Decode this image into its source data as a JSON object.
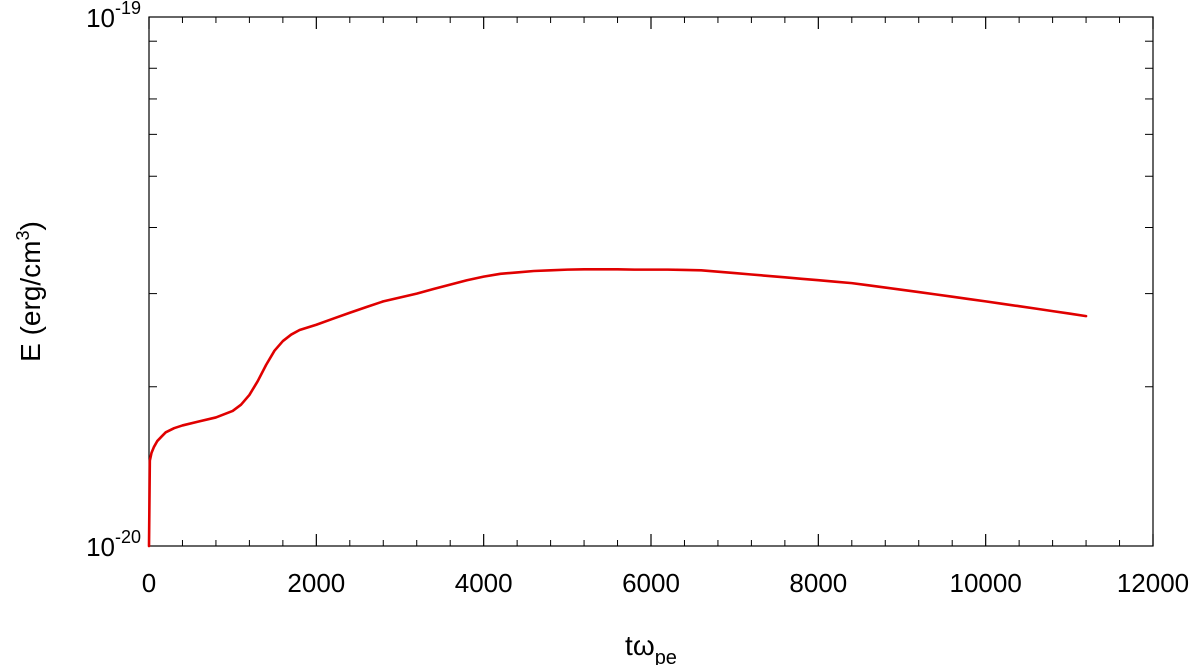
{
  "chart_data": {
    "type": "line",
    "title": "",
    "xlabel": {
      "base": "tω",
      "subscript": "pe"
    },
    "ylabel": {
      "prefix": "E (erg/cm",
      "superscript": "3",
      "suffix": ")"
    },
    "xlim": [
      0,
      12000
    ],
    "ylim": [
      1e-20,
      1e-19
    ],
    "yscale": "log",
    "grid": false,
    "legend": "none",
    "x_ticks": [
      {
        "value": 0,
        "label": "0"
      },
      {
        "value": 2000,
        "label": "2000"
      },
      {
        "value": 4000,
        "label": "4000"
      },
      {
        "value": 6000,
        "label": "6000"
      },
      {
        "value": 8000,
        "label": "8000"
      },
      {
        "value": 10000,
        "label": "10000"
      },
      {
        "value": 12000,
        "label": "12000"
      }
    ],
    "y_ticks": [
      {
        "value": 1e-20,
        "base": "10",
        "exponent": "-20"
      },
      {
        "value": 1e-19,
        "base": "10",
        "exponent": "-19"
      }
    ],
    "series": [
      {
        "color": "#e00000",
        "x": [
          0,
          10,
          30,
          60,
          100,
          150,
          200,
          300,
          400,
          600,
          800,
          1000,
          1100,
          1200,
          1300,
          1400,
          1500,
          1600,
          1700,
          1800,
          2000,
          2200,
          2400,
          2600,
          2800,
          3000,
          3200,
          3400,
          3600,
          3800,
          4000,
          4200,
          4400,
          4600,
          4800,
          5000,
          5200,
          5400,
          5600,
          5800,
          6000,
          6200,
          6400,
          6600,
          6800,
          7000,
          7200,
          7400,
          7600,
          7800,
          8000,
          8200,
          8400,
          8600,
          8800,
          9000,
          9200,
          9400,
          9600,
          9800,
          10000,
          10200,
          10400,
          10600,
          10800,
          11000,
          11200
        ],
        "y": [
          1e-20,
          1.45e-20,
          1.5e-20,
          1.54e-20,
          1.58e-20,
          1.61e-20,
          1.64e-20,
          1.67e-20,
          1.69e-20,
          1.72e-20,
          1.75e-20,
          1.8e-20,
          1.85e-20,
          1.93e-20,
          2.05e-20,
          2.2e-20,
          2.34e-20,
          2.44e-20,
          2.51e-20,
          2.56e-20,
          2.62e-20,
          2.69e-20,
          2.76e-20,
          2.83e-20,
          2.9e-20,
          2.95e-20,
          3e-20,
          3.06e-20,
          3.12e-20,
          3.18e-20,
          3.23e-20,
          3.27e-20,
          3.29e-20,
          3.31e-20,
          3.32e-20,
          3.33e-20,
          3.335e-20,
          3.335e-20,
          3.335e-20,
          3.33e-20,
          3.33e-20,
          3.33e-20,
          3.325e-20,
          3.32e-20,
          3.3e-20,
          3.28e-20,
          3.26e-20,
          3.24e-20,
          3.22e-20,
          3.2e-20,
          3.18e-20,
          3.16e-20,
          3.14e-20,
          3.11e-20,
          3.08e-20,
          3.05e-20,
          3.02e-20,
          2.99e-20,
          2.96e-20,
          2.93e-20,
          2.9e-20,
          2.87e-20,
          2.84e-20,
          2.81e-20,
          2.78e-20,
          2.75e-20,
          2.72e-20
        ]
      }
    ]
  }
}
